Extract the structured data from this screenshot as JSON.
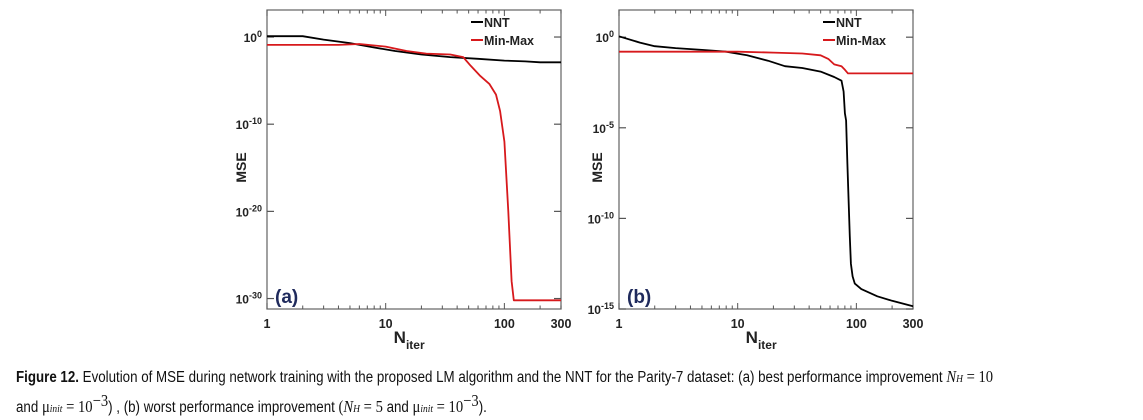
{
  "chart_data": [
    {
      "type": "line",
      "panel_label": "(a)",
      "title": "",
      "xlabel": "N",
      "xlabel_sub": "iter",
      "ylabel": "MSE",
      "xscale": "log",
      "yscale": "log",
      "xlim": [
        1,
        300
      ],
      "ylim_exp": [
        -31.2,
        3.1
      ],
      "xticks": [
        {
          "v": 1,
          "label": "1"
        },
        {
          "v": 10,
          "label": "10"
        },
        {
          "v": 100,
          "label": "100"
        },
        {
          "v": 300,
          "label": "300"
        }
      ],
      "yticks": [
        {
          "exp": 0,
          "label": "10",
          "sup": "0"
        },
        {
          "exp": -10,
          "label": "10",
          "sup": "-10"
        },
        {
          "exp": -20,
          "label": "10",
          "sup": "-20"
        },
        {
          "exp": -30,
          "label": "10",
          "sup": "-30"
        }
      ],
      "legend": {
        "position": "top-right",
        "entries": [
          {
            "name": "NNT",
            "color": "#000000"
          },
          {
            "name": "Min-Max",
            "color": "#d7191c"
          }
        ]
      },
      "series": [
        {
          "name": "NNT",
          "color": "#000000",
          "x": [
            1,
            2,
            3,
            5,
            8,
            12,
            20,
            35,
            60,
            100,
            150,
            200,
            300
          ],
          "y_exp": [
            0.1,
            0.1,
            -0.3,
            -0.7,
            -1.2,
            -1.6,
            -2.0,
            -2.3,
            -2.5,
            -2.7,
            -2.8,
            -2.9,
            -2.9
          ]
        },
        {
          "name": "Min-Max",
          "color": "#d7191c",
          "x": [
            1,
            2,
            4,
            6,
            10,
            15,
            22,
            35,
            45,
            52,
            62,
            75,
            85,
            92,
            100,
            108,
            115,
            120,
            150,
            300
          ],
          "y_exp": [
            -0.9,
            -0.9,
            -0.9,
            -0.8,
            -1.1,
            -1.6,
            -1.9,
            -2.0,
            -2.3,
            -3.3,
            -4.4,
            -5.4,
            -6.6,
            -8.5,
            -12,
            -20,
            -28,
            -30.2,
            -30.2,
            -30.2
          ]
        }
      ]
    },
    {
      "type": "line",
      "panel_label": "(b)",
      "title": "",
      "xlabel": "N",
      "xlabel_sub": "iter",
      "ylabel": "MSE",
      "xscale": "log",
      "yscale": "log",
      "xlim": [
        1,
        300
      ],
      "ylim_exp": [
        -15,
        1.5
      ],
      "xticks": [
        {
          "v": 1,
          "label": "1"
        },
        {
          "v": 10,
          "label": "10"
        },
        {
          "v": 100,
          "label": "100"
        },
        {
          "v": 300,
          "label": "300"
        }
      ],
      "yticks": [
        {
          "exp": 0,
          "label": "10",
          "sup": "0"
        },
        {
          "exp": -5,
          "label": "10",
          "sup": "-5"
        },
        {
          "exp": -10,
          "label": "10",
          "sup": "-10"
        },
        {
          "exp": -15,
          "label": "10",
          "sup": "-15"
        }
      ],
      "legend": {
        "position": "top-right",
        "entries": [
          {
            "name": "NNT",
            "color": "#000000"
          },
          {
            "name": "Min-Max",
            "color": "#d7191c"
          }
        ]
      },
      "series": [
        {
          "name": "NNT",
          "color": "#000000",
          "x": [
            1,
            1.5,
            2,
            3,
            5,
            8,
            12,
            18,
            25,
            35,
            50,
            65,
            75,
            78,
            80,
            82,
            84,
            86,
            88,
            90,
            93,
            97,
            110,
            150,
            200,
            300
          ],
          "y_exp": [
            0.05,
            -0.3,
            -0.5,
            -0.6,
            -0.7,
            -0.8,
            -1.0,
            -1.3,
            -1.6,
            -1.7,
            -1.9,
            -2.2,
            -2.4,
            -3.0,
            -4.2,
            -4.6,
            -7.0,
            -9.0,
            -11.0,
            -12.5,
            -13.2,
            -13.6,
            -13.9,
            -14.3,
            -14.55,
            -14.85
          ]
        },
        {
          "name": "Min-Max",
          "color": "#d7191c",
          "x": [
            1,
            5,
            10,
            20,
            35,
            50,
            58,
            65,
            75,
            80,
            85,
            100,
            150,
            300
          ],
          "y_exp": [
            -0.8,
            -0.8,
            -0.8,
            -0.85,
            -0.9,
            -1.0,
            -1.2,
            -1.5,
            -1.6,
            -1.8,
            -2.0,
            -2.0,
            -2.0,
            -2.0
          ]
        }
      ]
    }
  ],
  "caption": {
    "label": "Figure 12.",
    "line1_text": " Evolution of MSE during network training with the proposed LM algorithm and the NNT for the Parity-7 dataset: (a) best performance improvement ",
    "line1_math_var": "N",
    "line1_math_sub": "H",
    "line1_math_eq": " = 10",
    "line2_and": "and ",
    "mu": "μ",
    "mu_sub": "init",
    "eq_10": " = 10",
    "exp_m3": "−3",
    "line2_mid": ") , (b) worst performance improvement ",
    "paren_open": "(",
    "nh_eq_5": " = 5",
    "and_word": " and ",
    "end": ")."
  }
}
